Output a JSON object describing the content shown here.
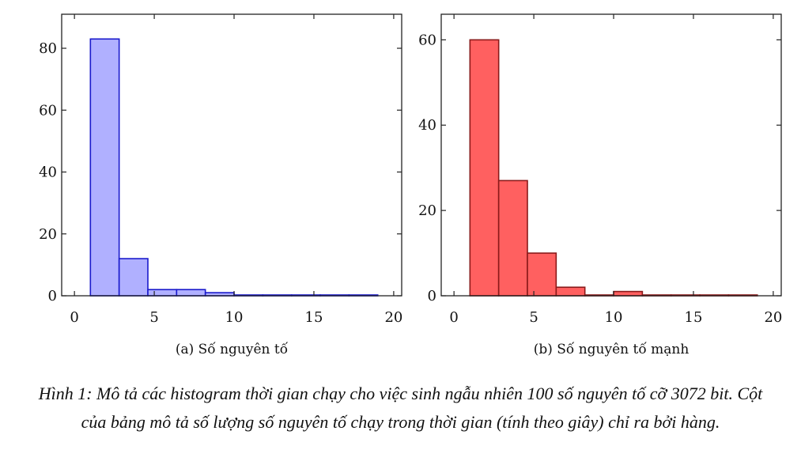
{
  "chart_data": [
    {
      "type": "bar",
      "subcaption": "(a) Số nguyên tố",
      "bin_edges": [
        1,
        2.8,
        4.6,
        6.4,
        8.2,
        10,
        11.8,
        13.6,
        15.4,
        17.2,
        19
      ],
      "values": [
        83,
        12,
        2,
        2,
        1,
        0,
        0,
        0,
        0,
        0
      ],
      "xlim": [
        -0.8,
        20.5
      ],
      "ylim": [
        0,
        91
      ],
      "xticks": [
        0,
        5,
        10,
        15,
        20
      ],
      "yticks": [
        0,
        20,
        40,
        60,
        80
      ],
      "fill": "#b0b0ff",
      "stroke": "#1a1acc"
    },
    {
      "type": "bar",
      "subcaption": "(b) Số nguyên tố mạnh",
      "bin_edges": [
        1,
        2.8,
        4.6,
        6.4,
        8.2,
        10,
        11.8,
        13.6,
        15.4,
        17.2,
        19
      ],
      "values": [
        60,
        27,
        10,
        2,
        0,
        1,
        0,
        0,
        0,
        0
      ],
      "xlim": [
        -0.8,
        20.5
      ],
      "ylim": [
        0,
        66
      ],
      "xticks": [
        0,
        5,
        10,
        15,
        20
      ],
      "yticks": [
        0,
        20,
        40,
        60
      ],
      "fill": "#ff6060",
      "stroke": "#8b1a1a"
    }
  ],
  "caption": "Hình 1: Mô tả các histogram thời gian chạy cho việc sinh ngẫu nhiên 100 số nguyên tố cỡ 3072 bit. Cột của bảng mô tả số lượng số nguyên tố chạy trong thời gian (tính theo giây) chỉ ra bởi hàng."
}
